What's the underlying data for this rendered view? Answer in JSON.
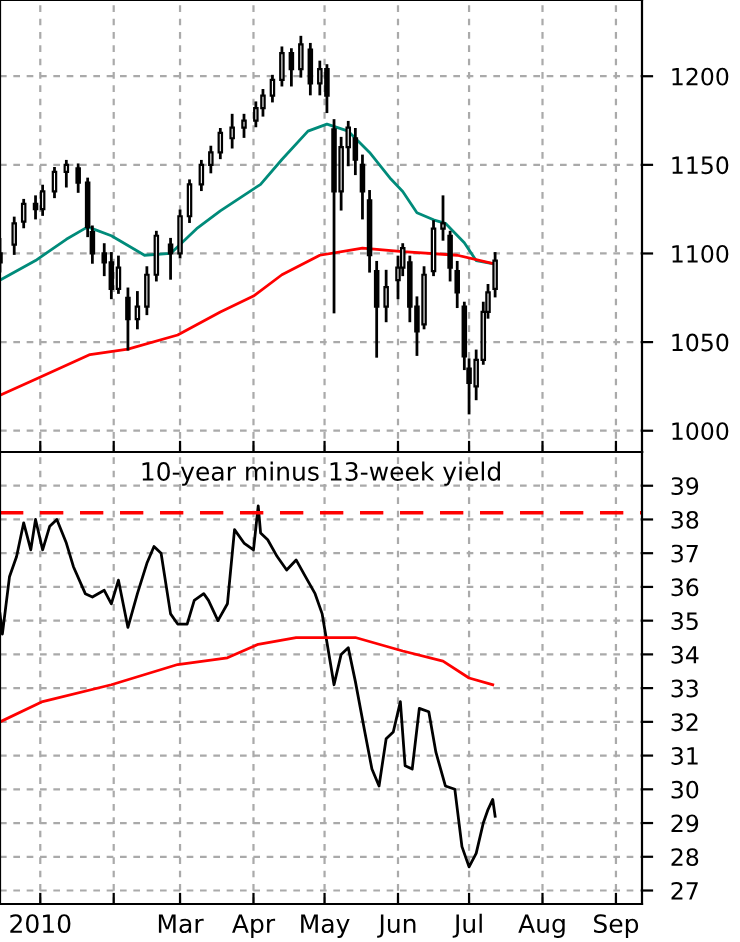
{
  "chart_data": [
    {
      "type": "candlestick",
      "grid": true,
      "tick_labels": "y",
      "x": [
        "2009-12-15",
        "2009-12-21",
        "2009-12-25",
        "2009-12-30",
        "2010-01-02",
        "2010-01-07",
        "2010-01-12",
        "2010-01-17",
        "2010-01-21",
        "2010-01-23",
        "2010-01-28",
        "2010-01-31",
        "2010-02-03",
        "2010-02-07",
        "2010-02-11",
        "2010-02-15",
        "2010-02-19",
        "2010-02-25",
        "2010-03-01",
        "2010-03-05",
        "2010-03-10",
        "2010-03-14",
        "2010-03-18",
        "2010-03-23",
        "2010-03-28",
        "2010-04-02",
        "2010-04-05",
        "2010-04-09",
        "2010-04-13",
        "2010-04-17",
        "2010-04-21",
        "2010-04-25",
        "2010-04-29",
        "2010-05-02",
        "2010-05-05",
        "2010-05-08",
        "2010-05-11",
        "2010-05-14",
        "2010-05-17",
        "2010-05-20",
        "2010-05-23",
        "2010-05-27",
        "2010-06-01",
        "2010-06-03",
        "2010-06-06",
        "2010-06-09",
        "2010-06-12",
        "2010-06-16",
        "2010-06-20",
        "2010-06-23",
        "2010-06-26",
        "2010-06-29",
        "2010-07-01",
        "2010-07-04",
        "2010-07-07",
        "2010-07-09",
        "2010-07-12"
      ],
      "ohlc": [
        [
          1100,
          1108,
          1090,
          1095
        ],
        [
          1105,
          1120,
          1100,
          1117
        ],
        [
          1118,
          1130,
          1115,
          1128
        ],
        [
          1128,
          1132,
          1120,
          1125
        ],
        [
          1125,
          1138,
          1122,
          1135
        ],
        [
          1135,
          1148,
          1132,
          1146
        ],
        [
          1146,
          1152,
          1138,
          1150
        ],
        [
          1148,
          1150,
          1135,
          1140
        ],
        [
          1140,
          1142,
          1110,
          1115
        ],
        [
          1112,
          1115,
          1095,
          1100
        ],
        [
          1100,
          1105,
          1088,
          1095
        ],
        [
          1095,
          1100,
          1075,
          1080
        ],
        [
          1080,
          1098,
          1078,
          1092
        ],
        [
          1075,
          1080,
          1046,
          1063
        ],
        [
          1063,
          1078,
          1058,
          1070
        ],
        [
          1070,
          1092,
          1066,
          1088
        ],
        [
          1088,
          1112,
          1085,
          1110
        ],
        [
          1105,
          1108,
          1086,
          1100
        ],
        [
          1100,
          1124,
          1098,
          1121
        ],
        [
          1121,
          1141,
          1118,
          1139
        ],
        [
          1139,
          1152,
          1136,
          1150
        ],
        [
          1150,
          1160,
          1146,
          1157
        ],
        [
          1157,
          1170,
          1154,
          1168
        ],
        [
          1165,
          1178,
          1160,
          1171
        ],
        [
          1171,
          1178,
          1166,
          1175
        ],
        [
          1175,
          1185,
          1172,
          1182
        ],
        [
          1182,
          1192,
          1178,
          1189
        ],
        [
          1189,
          1200,
          1186,
          1198
        ],
        [
          1198,
          1216,
          1195,
          1213
        ],
        [
          1213,
          1215,
          1195,
          1204
        ],
        [
          1204,
          1222,
          1200,
          1218
        ],
        [
          1215,
          1218,
          1190,
          1196
        ],
        [
          1196,
          1208,
          1190,
          1204
        ],
        [
          1204,
          1206,
          1180,
          1189
        ],
        [
          1170,
          1175,
          1067,
          1135
        ],
        [
          1135,
          1165,
          1125,
          1160
        ],
        [
          1160,
          1174,
          1150,
          1171
        ],
        [
          1165,
          1170,
          1145,
          1153
        ],
        [
          1150,
          1155,
          1120,
          1135
        ],
        [
          1130,
          1135,
          1090,
          1099
        ],
        [
          1090,
          1095,
          1042,
          1070
        ],
        [
          1070,
          1090,
          1062,
          1081
        ],
        [
          1085,
          1098,
          1075,
          1092
        ],
        [
          1092,
          1105,
          1088,
          1103
        ],
        [
          1095,
          1098,
          1062,
          1070
        ],
        [
          1070,
          1075,
          1043,
          1056
        ],
        [
          1060,
          1092,
          1058,
          1088
        ],
        [
          1090,
          1118,
          1088,
          1114
        ],
        [
          1114,
          1132,
          1108,
          1117
        ],
        [
          1110,
          1112,
          1085,
          1092
        ],
        [
          1090,
          1095,
          1070,
          1078
        ],
        [
          1070,
          1072,
          1035,
          1042
        ],
        [
          1035,
          1040,
          1010,
          1027
        ],
        [
          1025,
          1045,
          1018,
          1040
        ],
        [
          1040,
          1072,
          1038,
          1067
        ],
        [
          1067,
          1082,
          1064,
          1078
        ],
        [
          1080,
          1100,
          1076,
          1096
        ]
      ],
      "color": "#000000",
      "series": [
        {
          "type": "line",
          "color": "#008b7a",
          "x": [
            "2009-12-15",
            "2009-12-30",
            "2010-01-12",
            "2010-01-21",
            "2010-01-31",
            "2010-02-14",
            "2010-02-25",
            "2010-03-08",
            "2010-03-18",
            "2010-04-04",
            "2010-04-13",
            "2010-04-24",
            "2010-05-02",
            "2010-05-11",
            "2010-05-20",
            "2010-05-29",
            "2010-06-03",
            "2010-06-09",
            "2010-06-16",
            "2010-06-21",
            "2010-06-29",
            "2010-07-04",
            "2010-07-12"
          ],
          "values": [
            1085,
            1096,
            1108,
            1115,
            1110,
            1099,
            1100,
            1114,
            1124,
            1139,
            1153,
            1169,
            1173,
            1169,
            1157,
            1142,
            1135,
            1123,
            1119,
            1117,
            1106,
            1096,
            1094
          ]
        },
        {
          "type": "line",
          "color": "#ff0000",
          "x": [
            "2009-12-15",
            "2009-12-30",
            "2010-01-22",
            "2010-02-07",
            "2010-02-28",
            "2010-03-18",
            "2010-04-01",
            "2010-04-13",
            "2010-04-29",
            "2010-05-17",
            "2010-06-03",
            "2010-06-26",
            "2010-07-12"
          ],
          "values": [
            1020,
            1029,
            1043,
            1046,
            1054,
            1067,
            1076,
            1088,
            1099,
            1103,
            1101,
            1099,
            1094
          ]
        }
      ],
      "xlim": [
        "2009-12-15",
        "2010-09-12"
      ],
      "xticks": [
        {
          "value": "2010-01-01",
          "label": null
        },
        {
          "value": "2010-02-01",
          "label": null
        },
        {
          "value": "2010-03-01",
          "label": null
        },
        {
          "value": "2010-04-01",
          "label": null
        },
        {
          "value": "2010-05-01",
          "label": null
        },
        {
          "value": "2010-06-01",
          "label": null
        },
        {
          "value": "2010-07-01",
          "label": null
        },
        {
          "value": "2010-08-01",
          "label": null
        },
        {
          "value": "2010-09-01",
          "label": null
        }
      ],
      "ylim": [
        988,
        1243
      ],
      "yticks": [
        1000,
        1050,
        1100,
        1150,
        1200
      ]
    },
    {
      "type": "line",
      "title": "10-year minus 13-week yield",
      "grid": true,
      "series": [
        {
          "color": "#000000",
          "x": [
            "2009-12-15",
            "2009-12-16",
            "2009-12-19",
            "2009-12-22",
            "2009-12-25",
            "2009-12-28",
            "2009-12-30",
            "2010-01-02",
            "2010-01-05",
            "2010-01-08",
            "2010-01-12",
            "2010-01-15",
            "2010-01-20",
            "2010-01-23",
            "2010-01-28",
            "2010-01-31",
            "2010-02-03",
            "2010-02-07",
            "2010-02-11",
            "2010-02-15",
            "2010-02-18",
            "2010-02-21",
            "2010-02-25",
            "2010-02-28",
            "2010-03-04",
            "2010-03-07",
            "2010-03-11",
            "2010-03-13",
            "2010-03-17",
            "2010-03-21",
            "2010-03-24",
            "2010-03-28",
            "2010-04-01",
            "2010-04-03",
            "2010-04-04",
            "2010-04-07",
            "2010-04-11",
            "2010-04-15",
            "2010-04-19",
            "2010-04-23",
            "2010-04-27",
            "2010-04-30",
            "2010-05-05",
            "2010-05-08",
            "2010-05-11",
            "2010-05-14",
            "2010-05-18",
            "2010-05-21",
            "2010-05-24",
            "2010-05-27",
            "2010-05-30",
            "2010-06-02",
            "2010-06-04",
            "2010-06-07",
            "2010-06-10",
            "2010-06-14",
            "2010-06-17",
            "2010-06-21",
            "2010-06-25",
            "2010-06-28",
            "2010-07-01",
            "2010-07-04",
            "2010-07-07",
            "2010-07-09",
            "2010-07-11",
            "2010-07-12"
          ],
          "values": [
            35.2,
            34.6,
            36.3,
            36.9,
            37.9,
            37.1,
            38.0,
            37.1,
            37.8,
            38.0,
            37.3,
            36.6,
            35.8,
            35.7,
            35.9,
            35.5,
            36.2,
            34.8,
            35.8,
            36.7,
            37.2,
            37.0,
            35.2,
            34.9,
            34.9,
            35.6,
            35.8,
            35.6,
            35.0,
            35.5,
            37.7,
            37.3,
            37.1,
            38.4,
            37.6,
            37.4,
            36.9,
            36.5,
            36.8,
            36.3,
            35.8,
            35.2,
            33.1,
            34.0,
            34.2,
            33.2,
            31.7,
            30.6,
            30.1,
            31.5,
            31.7,
            32.6,
            30.7,
            30.6,
            32.4,
            32.3,
            31.1,
            30.1,
            30.0,
            28.3,
            27.7,
            28.1,
            29.0,
            29.4,
            29.7,
            29.2
          ]
        },
        {
          "color": "#ff0000",
          "x": [
            "2009-12-15",
            "2010-01-02",
            "2010-01-31",
            "2010-02-28",
            "2010-03-21",
            "2010-04-03",
            "2010-04-19",
            "2010-05-14",
            "2010-06-03",
            "2010-06-20",
            "2010-07-01",
            "2010-07-11"
          ],
          "values": [
            32.0,
            32.6,
            33.1,
            33.7,
            33.9,
            34.3,
            34.5,
            34.5,
            34.1,
            33.8,
            33.3,
            33.1
          ]
        }
      ],
      "ref_lines": [
        {
          "axis": "y",
          "value": 38.2,
          "color": "#ff0000",
          "line_style": "dashed"
        }
      ],
      "xlim": [
        "2009-12-15",
        "2010-09-12"
      ],
      "xticks": [
        {
          "value": "2010-01-01",
          "label": "2010"
        },
        {
          "value": "2010-02-01",
          "label": null
        },
        {
          "value": "2010-03-01",
          "label": "Mar"
        },
        {
          "value": "2010-04-01",
          "label": "Apr"
        },
        {
          "value": "2010-05-01",
          "label": "May"
        },
        {
          "value": "2010-06-01",
          "label": "Jun"
        },
        {
          "value": "2010-07-01",
          "label": "Jul"
        },
        {
          "value": "2010-08-01",
          "label": "Aug"
        },
        {
          "value": "2010-09-01",
          "label": "Sep"
        }
      ],
      "ylim": [
        26.6,
        40
      ],
      "yticks": [
        27,
        28,
        29,
        30,
        31,
        32,
        33,
        34,
        35,
        36,
        37,
        38,
        39
      ]
    }
  ]
}
